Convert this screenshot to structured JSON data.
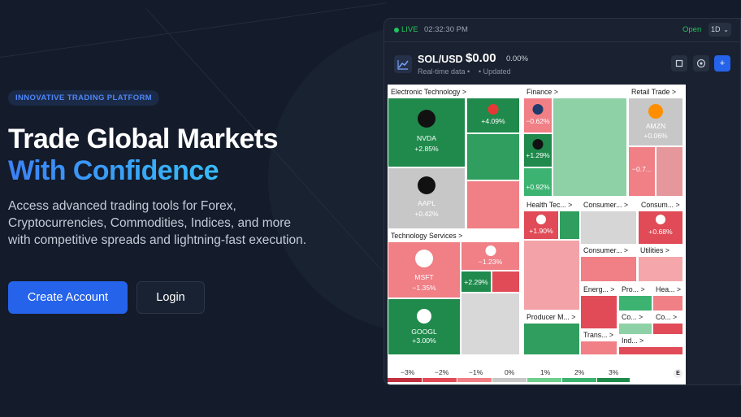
{
  "hero": {
    "badge": "INNOVATIVE TRADING PLATFORM",
    "title_line1": "Trade Global Markets",
    "title_line2": "With Confidence",
    "subtitle": "Access advanced trading tools for Forex, Cryptocurrencies, Commodities, Indices, and more with competitive spreads and lightning-fast execution.",
    "primary_button": "Create Account",
    "secondary_button": "Login"
  },
  "widget": {
    "live_label": "LIVE",
    "time": "02:32:30 PM",
    "market_status": "Open",
    "timeframe": "1D",
    "symbol": "SOL/USD",
    "price": "$0.00",
    "change": "0.00%",
    "realtime": "Real-time data •",
    "updated": "• Updated",
    "add_label": "+"
  },
  "heatmap": {
    "sections": [
      "Electronic Technology >",
      "Finance >",
      "Retail Trade >",
      "Technology Services >",
      "Health Tec... >",
      "Consumer... >",
      "Consum... >",
      "Consumer... >",
      "Utilities >",
      "Energ... >",
      "Pro... >",
      "Hea... >",
      "Producer M... >",
      "Co... >",
      "Co... >",
      "Trans... >",
      "Ind... >"
    ],
    "tickers": [
      {
        "sym": "NVDA",
        "pct": "+2.85%"
      },
      {
        "sym": "AAPL",
        "pct": "+0.42%"
      },
      {
        "sym": "MSFT",
        "pct": "−1.35%"
      },
      {
        "sym": "GOOGL",
        "pct": "+3.00%"
      },
      {
        "sym": "AMZN",
        "pct": "+0.06%"
      }
    ],
    "small_pcts": [
      "+4.09%",
      "−0.62%",
      "+1.29%",
      "+0.92%",
      "−1.23%",
      "+2.29%",
      "+1.90%",
      "−0.7...",
      "+0.68%"
    ],
    "legend": [
      "−3%",
      "−2%",
      "−1%",
      "0%",
      "1%",
      "2%",
      "3%"
    ],
    "badge": "E",
    "logo_mark": "TV"
  },
  "colors": {
    "accent": "#2563eb",
    "up_strong": "#1f8a4c",
    "up": "#3cb371",
    "down": "#f07f86",
    "down_strong": "#e04b57",
    "neutral": "#c7c7c7"
  }
}
